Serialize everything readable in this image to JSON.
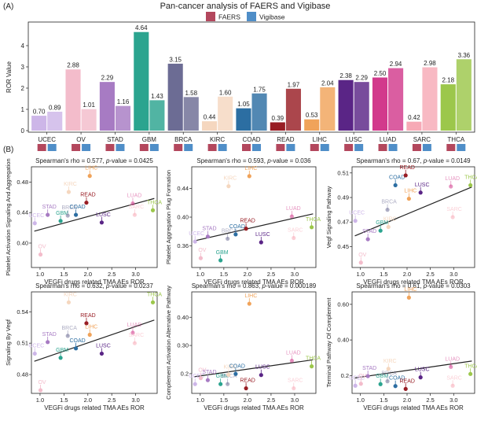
{
  "panels": {
    "a": "(A)",
    "b": "(B)"
  },
  "colors": {
    "faers": "#b3475d",
    "vigibase": "#4f8ec8",
    "trend": "#222222"
  },
  "chart_data": [
    {
      "id": "A",
      "type": "bar",
      "title": "Pan-cancer analysis of FAERS and Vigibase",
      "ylabel": "ROR Value",
      "ylim": [
        0,
        5
      ],
      "yticks": [
        0,
        1,
        2,
        3,
        4
      ],
      "legend": {
        "position": "top-center",
        "entries": [
          "FAERS",
          "Vigibase"
        ]
      },
      "categories": [
        "UCEC",
        "OV",
        "STAD",
        "GBM",
        "BRCA",
        "KIRC",
        "COAD",
        "READ",
        "LIHC",
        "LUSC",
        "LUAD",
        "SARC",
        "THCA"
      ],
      "category_colors": [
        "#cdb6e8",
        "#f3bccb",
        "#a77bc3",
        "#2ba48f",
        "#6c6c94",
        "#f5d7bf",
        "#2c6ea2",
        "#981d24",
        "#f0a35a",
        "#5a2586",
        "#d23a8c",
        "#f7a9b6",
        "#9cc74b"
      ],
      "series": [
        {
          "name": "FAERS",
          "values": [
            0.7,
            2.88,
            2.29,
            4.64,
            3.15,
            0.44,
            1.05,
            0.39,
            0.53,
            2.38,
            2.5,
            0.42,
            2.18
          ],
          "labels": [
            "0.70",
            "2.88",
            "2.29",
            "4.64",
            "3.15",
            "0.44",
            "1.05",
            "0.39",
            "0.53",
            "2.38",
            "2.50",
            "0.42",
            "2.18"
          ]
        },
        {
          "name": "Vigibase",
          "values": [
            0.89,
            1.01,
            1.16,
            1.43,
            1.58,
            1.6,
            1.75,
            1.97,
            2.04,
            2.29,
            2.94,
            2.98,
            3.36
          ],
          "labels": [
            "0.89",
            "1.01",
            "1.16",
            "1.43",
            "1.58",
            "1.60",
            "1.75",
            "1.97",
            "2.04",
            "2.29",
            "2.94",
            "2.98",
            "3.36"
          ]
        }
      ]
    },
    {
      "id": "B1",
      "type": "scatter",
      "title_prefix": "Spearman's rho = 0.577, ",
      "title_p": "p",
      "title_suffix": "-value = 0.0425",
      "xlabel": "VEGFi drugs related TMA AEs ROR",
      "ylabel": "Platelet Activation Signaling And Aggregation",
      "xlim": [
        0.82,
        3.45
      ],
      "ylim": [
        0.368,
        0.5
      ],
      "xticks": [
        1.0,
        1.5,
        2.0,
        2.5,
        3.0
      ],
      "yticks": [
        0.4,
        0.44,
        0.48
      ],
      "trend": [
        0.2,
        0.404,
        3.45,
        0.4595
      ],
      "points": [
        {
          "label": "UCEC",
          "x": 0.89,
          "y": 0.426
        },
        {
          "label": "OV",
          "x": 1.01,
          "y": 0.385
        },
        {
          "label": "STAD",
          "x": 1.16,
          "y": 0.437
        },
        {
          "label": "GBM",
          "x": 1.43,
          "y": 0.429
        },
        {
          "label": "BRCA",
          "x": 1.58,
          "y": 0.436
        },
        {
          "label": "KIRC",
          "x": 1.6,
          "y": 0.467
        },
        {
          "label": "COAD",
          "x": 1.75,
          "y": 0.437
        },
        {
          "label": "READ",
          "x": 1.97,
          "y": 0.453
        },
        {
          "label": "LIHC",
          "x": 2.04,
          "y": 0.488
        },
        {
          "label": "LUSC",
          "x": 2.29,
          "y": 0.427
        },
        {
          "label": "LUAD",
          "x": 2.94,
          "y": 0.452
        },
        {
          "label": "SARC",
          "x": 2.98,
          "y": 0.437
        },
        {
          "label": "THCA",
          "x": 3.36,
          "y": 0.443
        }
      ]
    },
    {
      "id": "B2",
      "type": "scatter",
      "title_prefix": "Spearman's rho = 0.593, ",
      "title_p": "p",
      "title_suffix": "-value = 0.036",
      "xlabel": "VEGFi drugs related TMA AEs ROR",
      "ylabel": "Platelet Aggregation Plug Formation",
      "xlim": [
        0.82,
        3.45
      ],
      "ylim": [
        0.33,
        0.47
      ],
      "xticks": [
        1.0,
        1.5,
        2.0,
        2.5,
        3.0
      ],
      "yticks": [
        0.36,
        0.4,
        0.44
      ],
      "trend": [
        0.2,
        0.357,
        3.45,
        0.4055
      ],
      "points": [
        {
          "label": "UCEC",
          "x": 0.89,
          "y": 0.366
        },
        {
          "label": "OV",
          "x": 1.01,
          "y": 0.343
        },
        {
          "label": "STAD",
          "x": 1.16,
          "y": 0.373
        },
        {
          "label": "GBM",
          "x": 1.43,
          "y": 0.34
        },
        {
          "label": "BRCA",
          "x": 1.58,
          "y": 0.37
        },
        {
          "label": "KIRC",
          "x": 1.6,
          "y": 0.443
        },
        {
          "label": "COAD",
          "x": 1.75,
          "y": 0.376
        },
        {
          "label": "READ",
          "x": 1.97,
          "y": 0.384
        },
        {
          "label": "LIHC",
          "x": 2.04,
          "y": 0.457
        },
        {
          "label": "LUSC",
          "x": 2.29,
          "y": 0.365
        },
        {
          "label": "LUAD",
          "x": 2.94,
          "y": 0.401
        },
        {
          "label": "SARC",
          "x": 2.98,
          "y": 0.371
        },
        {
          "label": "THCA",
          "x": 3.36,
          "y": 0.386
        }
      ]
    },
    {
      "id": "B3",
      "type": "scatter",
      "title_prefix": "Spearman's rho = 0.67, ",
      "title_p": "p",
      "title_suffix": "-value = 0.0149",
      "xlabel": "VEGFi drugs related TMA AEs ROR",
      "ylabel": "Vegf Signaling Pathway",
      "xlim": [
        0.82,
        3.45
      ],
      "ylim": [
        0.433,
        0.515
      ],
      "xticks": [
        1.0,
        1.5,
        2.0,
        2.5,
        3.0
      ],
      "yticks": [
        0.45,
        0.47,
        0.49,
        0.51
      ],
      "trend": [
        0.2,
        0.448,
        3.45,
        0.4995
      ],
      "points": [
        {
          "label": "UCEC",
          "x": 0.89,
          "y": 0.471
        },
        {
          "label": "OV",
          "x": 1.01,
          "y": 0.437
        },
        {
          "label": "STAD",
          "x": 1.16,
          "y": 0.456
        },
        {
          "label": "GBM",
          "x": 1.43,
          "y": 0.463
        },
        {
          "label": "BRCA",
          "x": 1.58,
          "y": 0.48
        },
        {
          "label": "KIRC",
          "x": 1.6,
          "y": 0.466
        },
        {
          "label": "COAD",
          "x": 1.75,
          "y": 0.5
        },
        {
          "label": "READ",
          "x": 1.97,
          "y": 0.508
        },
        {
          "label": "LIHC",
          "x": 2.04,
          "y": 0.489
        },
        {
          "label": "LUSC",
          "x": 2.29,
          "y": 0.494
        },
        {
          "label": "LUAD",
          "x": 2.94,
          "y": 0.499
        },
        {
          "label": "SARC",
          "x": 2.98,
          "y": 0.474
        },
        {
          "label": "THCA",
          "x": 3.36,
          "y": 0.5
        }
      ]
    },
    {
      "id": "B4",
      "type": "scatter",
      "title_prefix": "Spearman's rho = 0.632, ",
      "title_p": "p",
      "title_suffix": "-value = 0.0237",
      "xlabel": "VEGFi drugs related TMA AEs ROR",
      "ylabel": "Signaling By Vegf",
      "xlim": [
        0.82,
        3.45
      ],
      "ylim": [
        0.462,
        0.559
      ],
      "xticks": [
        1.0,
        1.5,
        2.0,
        2.5,
        3.0
      ],
      "yticks": [
        0.48,
        0.51,
        0.54
      ],
      "trend": [
        0.2,
        0.482,
        3.45,
        0.533
      ],
      "points": [
        {
          "label": "UCEC",
          "x": 0.89,
          "y": 0.5
        },
        {
          "label": "OV",
          "x": 1.01,
          "y": 0.465
        },
        {
          "label": "STAD",
          "x": 1.16,
          "y": 0.511
        },
        {
          "label": "GBM",
          "x": 1.43,
          "y": 0.496
        },
        {
          "label": "BRCA",
          "x": 1.58,
          "y": 0.517
        },
        {
          "label": "KIRC",
          "x": 1.6,
          "y": 0.549
        },
        {
          "label": "COAD",
          "x": 1.75,
          "y": 0.505
        },
        {
          "label": "READ",
          "x": 1.97,
          "y": 0.529
        },
        {
          "label": "LIHC",
          "x": 2.04,
          "y": 0.518
        },
        {
          "label": "LUSC",
          "x": 2.29,
          "y": 0.5
        },
        {
          "label": "LUAD",
          "x": 2.94,
          "y": 0.52
        },
        {
          "label": "SARC",
          "x": 2.98,
          "y": 0.51
        },
        {
          "label": "THCA",
          "x": 3.36,
          "y": 0.549
        }
      ]
    },
    {
      "id": "B5",
      "type": "scatter",
      "title_prefix": "Spearman's rho = 0.863, ",
      "title_p": "p",
      "title_suffix": "-value = 0.000189",
      "xlabel": "VEGFi drugs related TMA AEs ROR",
      "ylabel": "Complement Activation Alternative Pathway",
      "xlim": [
        0.82,
        3.45
      ],
      "ylim": [
        0.13,
        0.49
      ],
      "xticks": [
        1.0,
        1.5,
        2.0,
        2.5,
        3.0
      ],
      "yticks": [
        0.2,
        0.3,
        0.4
      ],
      "trend": [
        0.2,
        0.173,
        3.45,
        0.2505
      ],
      "points": [
        {
          "label": "UCEC",
          "x": 0.89,
          "y": 0.163
        },
        {
          "label": "OV",
          "x": 1.01,
          "y": 0.184
        },
        {
          "label": "STAD",
          "x": 1.16,
          "y": 0.177
        },
        {
          "label": "GBM",
          "x": 1.43,
          "y": 0.163
        },
        {
          "label": "BRCA",
          "x": 1.58,
          "y": 0.163
        },
        {
          "label": "KIRC",
          "x": 1.6,
          "y": 0.196
        },
        {
          "label": "COAD",
          "x": 1.75,
          "y": 0.199
        },
        {
          "label": "READ",
          "x": 1.97,
          "y": 0.148
        },
        {
          "label": "LIHC",
          "x": 2.04,
          "y": 0.448
        },
        {
          "label": "LUSC",
          "x": 2.29,
          "y": 0.195
        },
        {
          "label": "LUAD",
          "x": 2.94,
          "y": 0.246
        },
        {
          "label": "SARC",
          "x": 2.98,
          "y": 0.148
        },
        {
          "label": "THCA",
          "x": 3.36,
          "y": 0.226
        }
      ]
    },
    {
      "id": "B6",
      "type": "scatter",
      "title_prefix": "Spearman's rho = 0.61, ",
      "title_p": "p",
      "title_suffix": "-value = 0.0303",
      "xlabel": "VEGFi drugs related TMA AEs ROR",
      "ylabel": "Terminal Pathway Of Complement",
      "xlim": [
        0.82,
        3.45
      ],
      "ylim": [
        0.1,
        0.67
      ],
      "xticks": [
        1.0,
        1.5,
        2.0,
        2.5,
        3.0
      ],
      "yticks": [
        0.2,
        0.4,
        0.6
      ],
      "trend": [
        0.2,
        0.161,
        3.45,
        0.284
      ],
      "points": [
        {
          "label": "UCEC",
          "x": 0.89,
          "y": 0.143
        },
        {
          "label": "OV",
          "x": 1.01,
          "y": 0.154
        },
        {
          "label": "STAD",
          "x": 1.16,
          "y": 0.197
        },
        {
          "label": "GBM",
          "x": 1.43,
          "y": 0.152
        },
        {
          "label": "BRCA",
          "x": 1.58,
          "y": 0.168
        },
        {
          "label": "KIRC",
          "x": 1.6,
          "y": 0.238
        },
        {
          "label": "COAD",
          "x": 1.75,
          "y": 0.141
        },
        {
          "label": "READ",
          "x": 1.97,
          "y": 0.125
        },
        {
          "label": "LIHC",
          "x": 2.04,
          "y": 0.638
        },
        {
          "label": "LUSC",
          "x": 2.29,
          "y": 0.19
        },
        {
          "label": "LUAD",
          "x": 2.94,
          "y": 0.249
        },
        {
          "label": "SARC",
          "x": 2.98,
          "y": 0.143
        },
        {
          "label": "THCA",
          "x": 3.36,
          "y": 0.209
        }
      ]
    }
  ]
}
